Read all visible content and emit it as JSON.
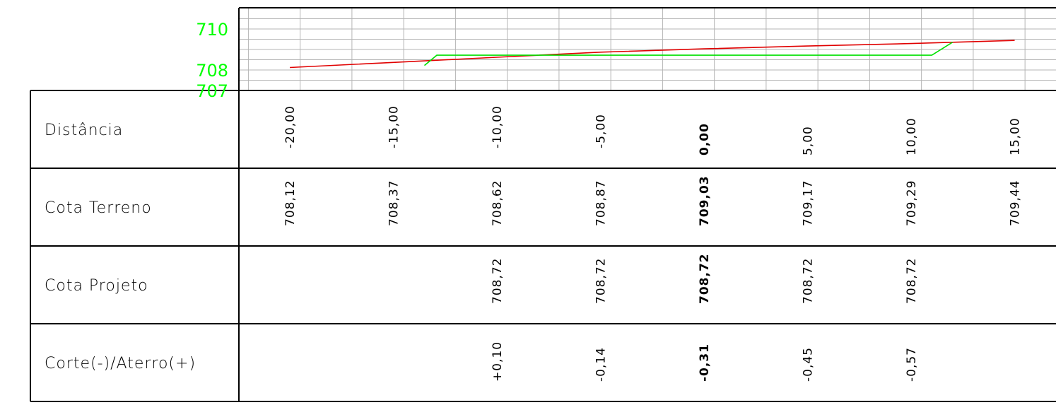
{
  "chart_data": {
    "type": "line",
    "xlabel": "",
    "ylabel": "",
    "x_range": [
      -20,
      15
    ],
    "y_range": [
      707,
      710
    ],
    "y_ticks": [
      "710",
      "708",
      "707"
    ],
    "x": [
      -20,
      -15,
      -10,
      -5,
      0,
      5,
      10,
      15
    ],
    "series": [
      {
        "key": "terreno",
        "color": "#e00000",
        "points": [
          [
            -20,
            708.12
          ],
          [
            -15,
            708.37
          ],
          [
            -10,
            708.62
          ],
          [
            -5,
            708.87
          ],
          [
            0,
            709.03
          ],
          [
            5,
            709.17
          ],
          [
            10,
            709.29
          ],
          [
            15,
            709.44
          ]
        ]
      },
      {
        "key": "projeto",
        "color": "#00e000",
        "points": [
          [
            -13.5,
            708.22
          ],
          [
            -12.9,
            708.72
          ],
          [
            11.0,
            708.72
          ],
          [
            12.0,
            709.35
          ]
        ]
      }
    ]
  },
  "table": {
    "rows": [
      {
        "label": "Distância",
        "values": [
          "-20,00",
          "-15,00",
          "-10,00",
          "-5,00",
          "0,00",
          "5,00",
          "10,00",
          "15,00"
        ]
      },
      {
        "label": "Cota Terreno",
        "values": [
          "708,12",
          "708,37",
          "708,62",
          "708,87",
          "709,03",
          "709,17",
          "709,29",
          "709,44"
        ]
      },
      {
        "label": "Cota Projeto",
        "values": [
          "",
          "",
          "708,72",
          "708,72",
          "708,72",
          "708,72",
          "708,72",
          ""
        ]
      },
      {
        "label": "Corte(-)/Aterro(+)",
        "values": [
          "",
          "",
          "+0,10",
          "-0,14",
          "-0,31",
          "-0,45",
          "-0,57",
          ""
        ]
      }
    ],
    "bold_column": 4
  },
  "colors": {
    "grid": "#b4b4b4",
    "frame": "#000000",
    "elevation_labels": "#00ff00"
  }
}
